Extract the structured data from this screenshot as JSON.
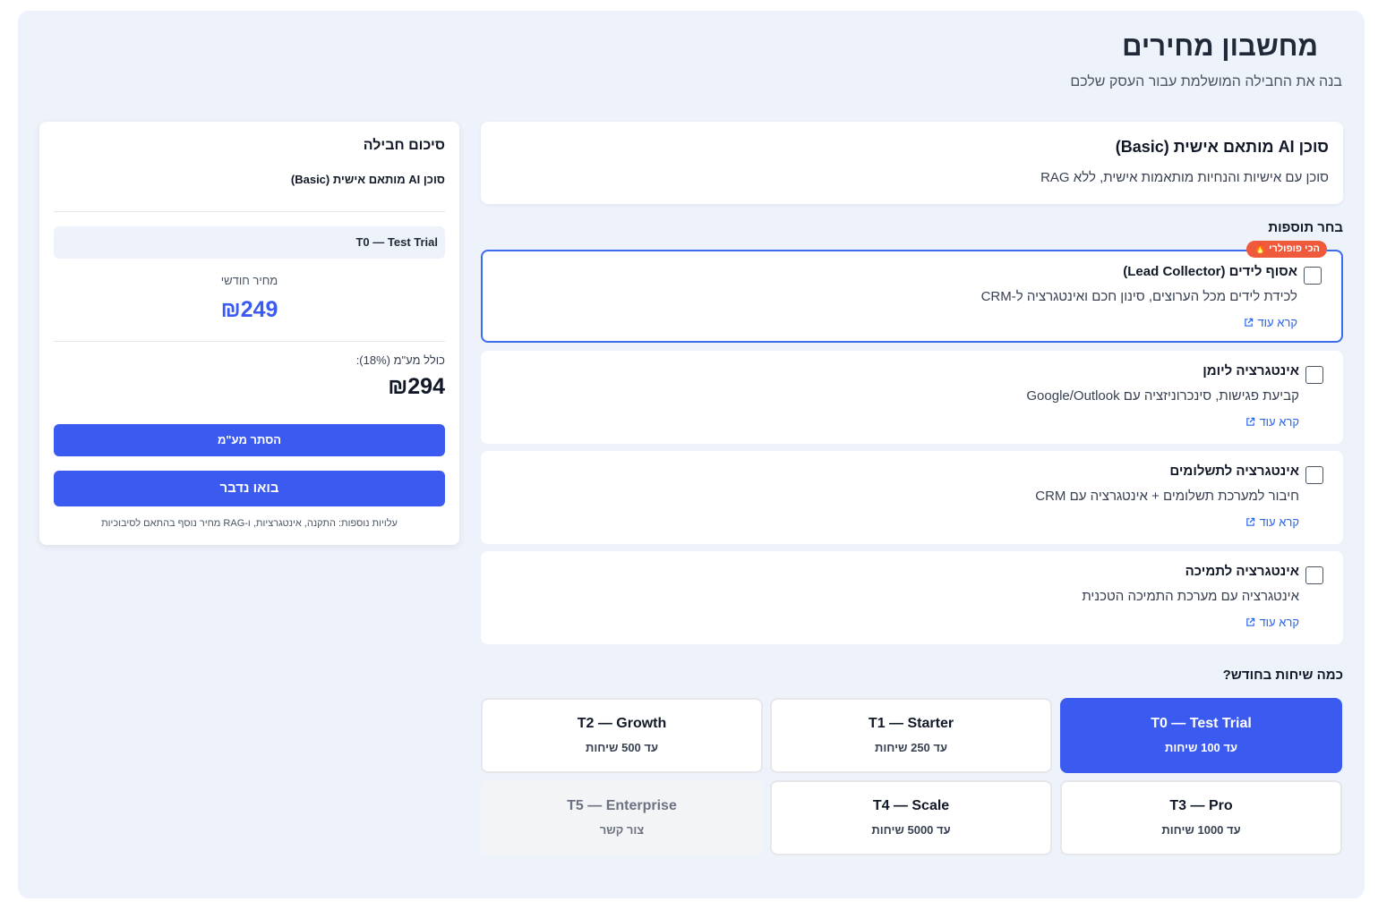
{
  "header": {
    "title": "מחשבון מחירים",
    "subtitle": "בנה את החבילה המושלמת עבור העסק שלכם"
  },
  "agent": {
    "name": "סוכן AI מותאם אישית (Basic)",
    "description": "סוכן עם אישיות והנחיות מותאמות אישית, ללא RAG"
  },
  "addons_section": {
    "label": "בחר תוספות",
    "popular_badge": "הכי פופולרי",
    "read_more": "קרא עוד",
    "items": [
      {
        "name": "אסוף לידים (Lead Collector)",
        "description": "לכידת לידים מכל הערוצים, סינון חכם ואינטגרציה ל-CRM",
        "checked": false,
        "popular": true
      },
      {
        "name": "אינטגרציה ליומן",
        "description": "קביעת פגישות, סינכרוניזציה עם Google/Outlook",
        "checked": false
      },
      {
        "name": "אינטגרציה לתשלומים",
        "description": "חיבור למערכת תשלומים + אינטגרציה עם CRM",
        "checked": false
      },
      {
        "name": "אינטגרציה לתמיכה",
        "description": "אינטגרציה עם מערכת התמיכה הטכנית",
        "checked": false
      }
    ]
  },
  "tiers_section": {
    "label": "כמה שיחות בחודש?",
    "tiers": [
      {
        "name": "T0 — Test Trial",
        "sub": "עד 100 שיחות",
        "state": "active"
      },
      {
        "name": "T1 — Starter",
        "sub": "עד 250 שיחות",
        "state": "normal"
      },
      {
        "name": "T2 — Growth",
        "sub": "עד 500 שיחות",
        "state": "normal"
      },
      {
        "name": "T3 — Pro",
        "sub": "עד 1000 שיחות",
        "state": "normal"
      },
      {
        "name": "T4 — Scale",
        "sub": "עד 5000 שיחות",
        "state": "normal"
      },
      {
        "name": "T5 — Enterprise",
        "sub": "צור קשר",
        "state": "disabled"
      }
    ]
  },
  "summary": {
    "title": "סיכום חבילה",
    "agent": "סוכן AI מותאם אישית (Basic)",
    "tier": "T0 — Test Trial",
    "monthly_label": "מחיר חודשי",
    "monthly_price": "₪249",
    "vat_label": "כולל מע\"מ (18%):",
    "vat_price": "₪294",
    "hide_vat_button": "הסתר מע\"מ",
    "talk_button": "בואו נדבר",
    "note": "עלויות נוספות: התקנה, אינטגרציות, ו-RAG מחיר נוסף בהתאם לסיבוכיות"
  },
  "colors": {
    "accent": "#3b5bf0",
    "background": "#eef2fa",
    "badge": "#ef5a3c"
  }
}
